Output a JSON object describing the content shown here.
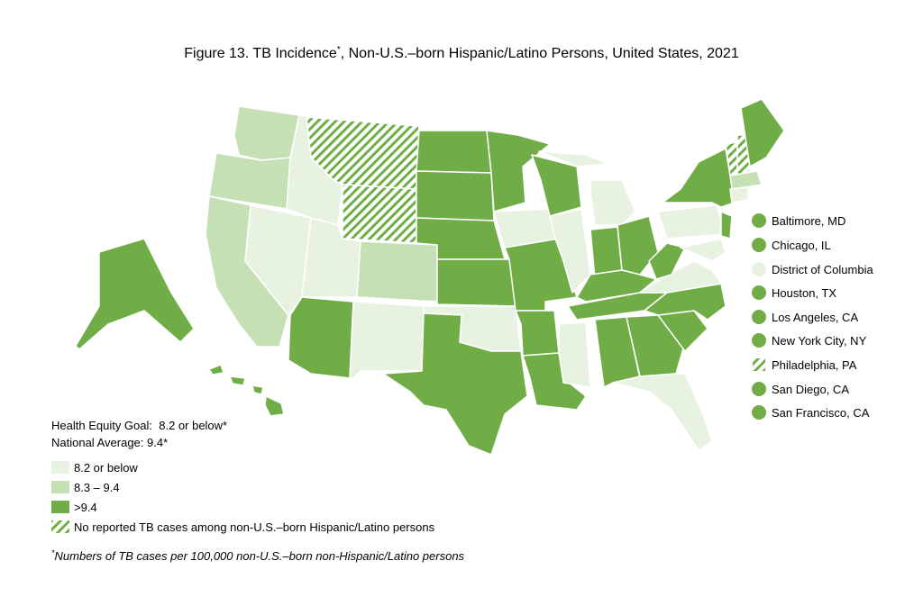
{
  "title": {
    "lead": "Figure 13. TB Incidence",
    "mark": "*",
    "rest": ", Non-U.S.–born Hispanic/Latino Persons, United States, 2021"
  },
  "cities": [
    "Baltimore, MD",
    "Chicago, IL",
    "District of Columbia",
    "Houston, TX",
    "Los Angeles, CA",
    "New York City, NY",
    "Philadelphia, PA",
    "San Diego, CA",
    "San Francisco, CA"
  ],
  "notes": {
    "goal": "Health Equity Goal:  8.2 or below*",
    "average": "National Average: 9.4*"
  },
  "legend": [
    "8.2 or below",
    "8.3 – 9.4",
    ">9.4",
    "No reported TB cases among non-U.S.–born Hispanic/Latino persons"
  ],
  "footnote": {
    "mark": "*",
    "text": "Numbers of TB cases per 100,000 non-U.S.–born non-Hispanic/Latino persons"
  }
}
